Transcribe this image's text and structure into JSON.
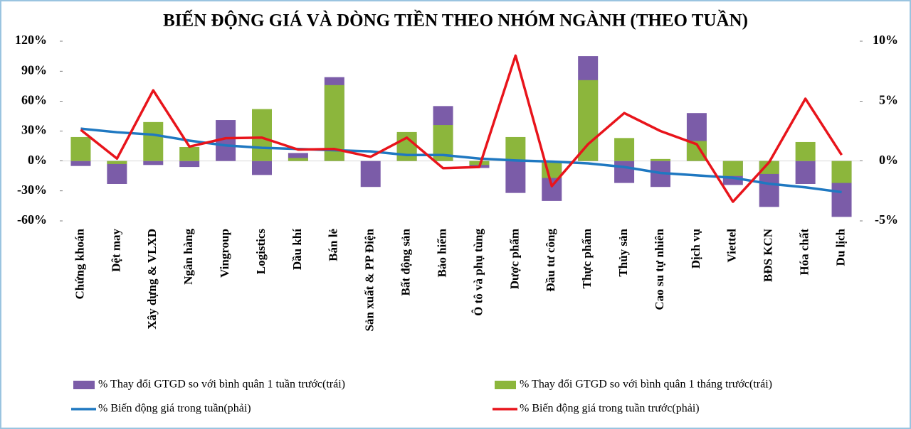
{
  "chart_data": {
    "type": "combo",
    "title": "BIẾN ĐỘNG GIÁ VÀ DÒNG TIỀN THEO NHÓM NGÀNH (THEO TUẦN)",
    "categories": [
      "Chứng khoán",
      "Dệt may",
      "Xây dựng & VLXD",
      "Ngân hàng",
      "Vingroup",
      "Logistics",
      "Dầu khí",
      "Bán lẻ",
      "Sản xuất & PP Điện",
      "Bất động sản",
      "Bảo hiểm",
      "Ô tô và phụ tùng",
      "Dược phẩm",
      "Đầu tư công",
      "Thực phẩm",
      "Thủy sản",
      "Cao su tự nhiên",
      "Dịch vụ",
      "Viettel",
      "BĐS KCN",
      "Hóa chất",
      "Du lịch"
    ],
    "series": [
      {
        "name": "% Thay đổi GTGD so với bình quân 1 tuần trước(trái)",
        "type": "bar",
        "color": "#7b5ca8",
        "values": [
          -5,
          -23,
          -4,
          -6,
          41,
          -14,
          8,
          84,
          -26,
          27,
          55,
          -7,
          -32,
          -40,
          105,
          -22,
          -26,
          48,
          -24,
          -46,
          -23,
          -56
        ]
      },
      {
        "name": "% Thay đổi GTGD so với bình quân 1 tháng trước(trái)",
        "type": "bar",
        "color": "#8cb63c",
        "values": [
          24,
          -3,
          39,
          14,
          0,
          52,
          3,
          76,
          0,
          29,
          36,
          -4,
          24,
          -17,
          81,
          23,
          2,
          20,
          -15,
          -13,
          19,
          -22
        ]
      },
      {
        "name": "% Biến động giá trong tuần(phải)",
        "type": "line",
        "axis": "y2",
        "color": "#1f78c1",
        "values": [
          2.7,
          2.4,
          2.2,
          1.7,
          1.3,
          1.1,
          1.0,
          0.9,
          0.8,
          0.5,
          0.5,
          0.2,
          0.05,
          -0.05,
          -0.2,
          -0.5,
          -1.0,
          -1.2,
          -1.4,
          -1.9,
          -2.2,
          -2.6
        ]
      },
      {
        "name": "% Biến động giá trong tuần trước(phải)",
        "type": "line",
        "axis": "y2",
        "color": "#e8141b",
        "values": [
          2.6,
          0.2,
          5.9,
          1.2,
          1.9,
          1.95,
          0.95,
          1.0,
          0.35,
          1.95,
          -0.6,
          -0.5,
          8.8,
          -2.1,
          1.4,
          4.0,
          2.5,
          1.4,
          -3.4,
          -0.1,
          5.2,
          0.5
        ]
      }
    ],
    "ylim": [
      -60,
      120
    ],
    "yticks": [
      {
        "value": -60,
        "label": "-60%"
      },
      {
        "value": -30,
        "label": "-30%"
      },
      {
        "value": 0,
        "label": "0%"
      },
      {
        "value": 30,
        "label": "30%"
      },
      {
        "value": 60,
        "label": "60%"
      },
      {
        "value": 90,
        "label": "90%"
      },
      {
        "value": 120,
        "label": "120%"
      }
    ],
    "y2lim": [
      -5,
      10
    ],
    "y2ticks": [
      {
        "value": -5,
        "label": "-5%"
      },
      {
        "value": 0,
        "label": "0%"
      },
      {
        "value": 5,
        "label": "5%"
      },
      {
        "value": 10,
        "label": "10%"
      }
    ]
  }
}
